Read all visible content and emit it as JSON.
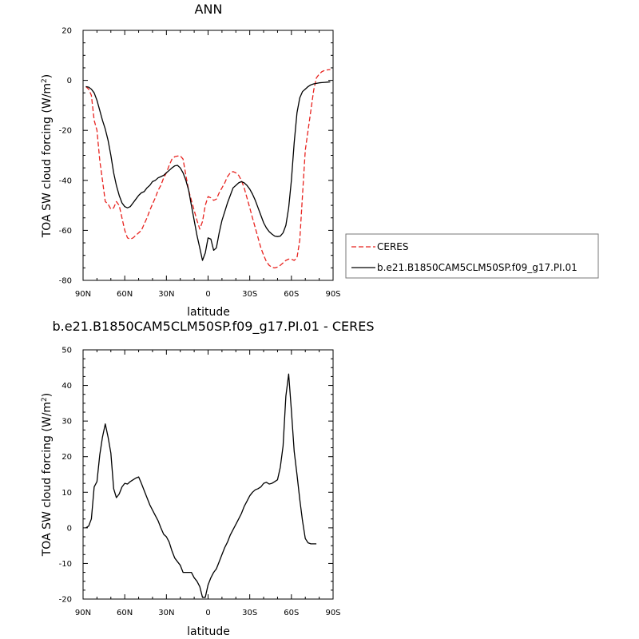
{
  "chart_data": [
    {
      "type": "line",
      "title": "ANN",
      "xlabel": "latitude",
      "ylabel": "TOA SW cloud forcing (W/m",
      "ylabel_superscript": "2",
      "ylabel_suffix": ")",
      "xlim": [
        90,
        -90
      ],
      "ylim": [
        -80,
        20
      ],
      "xticks": [
        {
          "value": 90,
          "label": "90N"
        },
        {
          "value": 60,
          "label": "60N"
        },
        {
          "value": 30,
          "label": "30N"
        },
        {
          "value": 0,
          "label": "0"
        },
        {
          "value": -30,
          "label": "30S"
        },
        {
          "value": -60,
          "label": "60S"
        },
        {
          "value": -90,
          "label": "90S"
        }
      ],
      "yticks": [
        20,
        0,
        -20,
        -40,
        -60,
        -80
      ],
      "legend_position": "right",
      "series": [
        {
          "name": "CERES",
          "color": "#e8231f",
          "dash": "dashed",
          "points": [
            [
              88,
              -2.5
            ],
            [
              86,
              -3.5
            ],
            [
              84,
              -6
            ],
            [
              82,
              -16
            ],
            [
              80,
              -20
            ],
            [
              78,
              -32
            ],
            [
              76,
              -40
            ],
            [
              74,
              -48.5
            ],
            [
              72,
              -49.5
            ],
            [
              70,
              -51.5
            ],
            [
              68,
              -51
            ],
            [
              66,
              -48.5
            ],
            [
              64,
              -50
            ],
            [
              62,
              -55
            ],
            [
              60,
              -60
            ],
            [
              58,
              -63
            ],
            [
              56,
              -63.5
            ],
            [
              54,
              -63
            ],
            [
              52,
              -62
            ],
            [
              50,
              -61
            ],
            [
              48,
              -60
            ],
            [
              46,
              -57.5
            ],
            [
              44,
              -55
            ],
            [
              42,
              -52
            ],
            [
              40,
              -49.5
            ],
            [
              38,
              -47
            ],
            [
              36,
              -44
            ],
            [
              34,
              -42
            ],
            [
              32,
              -39
            ],
            [
              30,
              -37
            ],
            [
              28,
              -34
            ],
            [
              26,
              -31.5
            ],
            [
              24,
              -30.5
            ],
            [
              22,
              -30.3
            ],
            [
              20,
              -30.2
            ],
            [
              18,
              -31.5
            ],
            [
              16,
              -38
            ],
            [
              14,
              -44
            ],
            [
              12,
              -48
            ],
            [
              10,
              -52
            ],
            [
              8,
              -56
            ],
            [
              6,
              -59.5
            ],
            [
              4,
              -56.5
            ],
            [
              2,
              -50
            ],
            [
              0,
              -46.5
            ],
            [
              -2,
              -47
            ],
            [
              -4,
              -48
            ],
            [
              -6,
              -47.5
            ],
            [
              -8,
              -45
            ],
            [
              -10,
              -43
            ],
            [
              -12,
              -41
            ],
            [
              -14,
              -38.5
            ],
            [
              -16,
              -37
            ],
            [
              -18,
              -36.5
            ],
            [
              -20,
              -37
            ],
            [
              -22,
              -38
            ],
            [
              -24,
              -40
            ],
            [
              -26,
              -43
            ],
            [
              -28,
              -47
            ],
            [
              -30,
              -51
            ],
            [
              -32,
              -55
            ],
            [
              -34,
              -59
            ],
            [
              -36,
              -63
            ],
            [
              -38,
              -67
            ],
            [
              -40,
              -70
            ],
            [
              -42,
              -72.5
            ],
            [
              -44,
              -74
            ],
            [
              -46,
              -74.8
            ],
            [
              -48,
              -75
            ],
            [
              -50,
              -74.7
            ],
            [
              -52,
              -74
            ],
            [
              -54,
              -73
            ],
            [
              -56,
              -72
            ],
            [
              -58,
              -71.5
            ],
            [
              -60,
              -71.5
            ],
            [
              -62,
              -72
            ],
            [
              -64,
              -71
            ],
            [
              -66,
              -64
            ],
            [
              -68,
              -46
            ],
            [
              -70,
              -28
            ],
            [
              -72,
              -20
            ],
            [
              -74,
              -12
            ],
            [
              -76,
              -4
            ],
            [
              -78,
              1
            ],
            [
              -80,
              2.5
            ],
            [
              -82,
              3.5
            ],
            [
              -84,
              4
            ],
            [
              -86,
              4.2
            ],
            [
              -88,
              4.3
            ]
          ]
        },
        {
          "name": "b.e21.B1850CAM5CLM50SP.f09_g17.PI.01",
          "color": "#000000",
          "dash": "solid",
          "points": [
            [
              88,
              -2.5
            ],
            [
              86,
              -2.7
            ],
            [
              84,
              -3.5
            ],
            [
              82,
              -5
            ],
            [
              80,
              -8
            ],
            [
              78,
              -12
            ],
            [
              76,
              -16
            ],
            [
              74,
              -19.5
            ],
            [
              72,
              -24
            ],
            [
              70,
              -30
            ],
            [
              68,
              -37
            ],
            [
              66,
              -42
            ],
            [
              64,
              -46
            ],
            [
              62,
              -49
            ],
            [
              60,
              -50.5
            ],
            [
              58,
              -51
            ],
            [
              56,
              -50.5
            ],
            [
              54,
              -49
            ],
            [
              52,
              -47.5
            ],
            [
              50,
              -46
            ],
            [
              48,
              -45
            ],
            [
              46,
              -44.5
            ],
            [
              44,
              -43
            ],
            [
              42,
              -42
            ],
            [
              40,
              -40.5
            ],
            [
              38,
              -40
            ],
            [
              36,
              -39
            ],
            [
              34,
              -38.5
            ],
            [
              32,
              -38
            ],
            [
              30,
              -37
            ],
            [
              28,
              -36
            ],
            [
              26,
              -35
            ],
            [
              24,
              -34.2
            ],
            [
              22,
              -34
            ],
            [
              20,
              -35
            ],
            [
              18,
              -37
            ],
            [
              16,
              -40
            ],
            [
              14,
              -44
            ],
            [
              12,
              -50
            ],
            [
              10,
              -56
            ],
            [
              8,
              -62
            ],
            [
              6,
              -67
            ],
            [
              4,
              -72
            ],
            [
              2,
              -69
            ],
            [
              0,
              -63
            ],
            [
              -2,
              -63.5
            ],
            [
              -4,
              -68
            ],
            [
              -6,
              -67
            ],
            [
              -8,
              -61
            ],
            [
              -10,
              -56
            ],
            [
              -12,
              -52.5
            ],
            [
              -14,
              -49
            ],
            [
              -16,
              -46
            ],
            [
              -18,
              -43
            ],
            [
              -20,
              -42
            ],
            [
              -22,
              -41
            ],
            [
              -24,
              -40.5
            ],
            [
              -26,
              -41
            ],
            [
              -28,
              -42
            ],
            [
              -30,
              -43.5
            ],
            [
              -32,
              -45.5
            ],
            [
              -34,
              -48
            ],
            [
              -36,
              -51
            ],
            [
              -38,
              -54
            ],
            [
              -40,
              -57
            ],
            [
              -42,
              -59
            ],
            [
              -44,
              -60.5
            ],
            [
              -46,
              -61.5
            ],
            [
              -48,
              -62.3
            ],
            [
              -50,
              -62.5
            ],
            [
              -52,
              -62.3
            ],
            [
              -54,
              -61
            ],
            [
              -56,
              -58
            ],
            [
              -58,
              -51
            ],
            [
              -60,
              -40
            ],
            [
              -62,
              -25
            ],
            [
              -64,
              -13
            ],
            [
              -66,
              -7
            ],
            [
              -68,
              -4.5
            ],
            [
              -70,
              -3.5
            ],
            [
              -72,
              -2.5
            ],
            [
              -74,
              -1.8
            ],
            [
              -76,
              -1.4
            ],
            [
              -78,
              -1.2
            ],
            [
              -80,
              -1
            ],
            [
              -82,
              -0.9
            ],
            [
              -84,
              -0.8
            ],
            [
              -86,
              -0.7
            ],
            [
              -88,
              -0.6
            ]
          ]
        }
      ]
    },
    {
      "type": "line",
      "title": "b.e21.B1850CAM5CLM50SP.f09_g17.PI.01 - CERES",
      "xlabel": "latitude",
      "ylabel": "TOA SW cloud forcing (W/m",
      "ylabel_superscript": "2",
      "ylabel_suffix": ")",
      "xlim": [
        90,
        -90
      ],
      "ylim": [
        -20,
        50
      ],
      "xticks": [
        {
          "value": 90,
          "label": "90N"
        },
        {
          "value": 60,
          "label": "60N"
        },
        {
          "value": 30,
          "label": "30N"
        },
        {
          "value": 0,
          "label": "0"
        },
        {
          "value": -30,
          "label": "30S"
        },
        {
          "value": -60,
          "label": "60S"
        },
        {
          "value": -90,
          "label": "90S"
        }
      ],
      "yticks": [
        50,
        40,
        30,
        20,
        10,
        0,
        -10,
        -20
      ],
      "series": [
        {
          "color": "#000000",
          "dash": "solid",
          "points": [
            [
              88,
              0
            ],
            [
              86,
              0.5
            ],
            [
              84,
              2.5
            ],
            [
              82,
              11.5
            ],
            [
              80,
              13
            ],
            [
              78,
              20.5
            ],
            [
              76,
              25.5
            ],
            [
              74,
              29.2
            ],
            [
              72,
              25.5
            ],
            [
              70,
              21
            ],
            [
              68,
              11
            ],
            [
              66,
              8.5
            ],
            [
              64,
              9.5
            ],
            [
              62,
              11.5
            ],
            [
              60,
              12.5
            ],
            [
              58,
              12.3
            ],
            [
              56,
              13
            ],
            [
              54,
              13.5
            ],
            [
              52,
              14
            ],
            [
              50,
              14.3
            ],
            [
              48,
              12.5
            ],
            [
              46,
              10.5
            ],
            [
              44,
              8.5
            ],
            [
              42,
              6.5
            ],
            [
              40,
              5
            ],
            [
              38,
              3.5
            ],
            [
              36,
              2
            ],
            [
              34,
              0
            ],
            [
              32,
              -1.8
            ],
            [
              30,
              -2.5
            ],
            [
              28,
              -4
            ],
            [
              26,
              -6.5
            ],
            [
              24,
              -8.5
            ],
            [
              22,
              -9.5
            ],
            [
              20,
              -10.5
            ],
            [
              18,
              -12.5
            ],
            [
              16,
              -12.5
            ],
            [
              14,
              -12.5
            ],
            [
              12,
              -12.5
            ],
            [
              10,
              -14
            ],
            [
              8,
              -15
            ],
            [
              6,
              -16.5
            ],
            [
              4,
              -19.5
            ],
            [
              2,
              -19.5
            ],
            [
              0,
              -16
            ],
            [
              -2,
              -14
            ],
            [
              -4,
              -12.5
            ],
            [
              -6,
              -11.5
            ],
            [
              -8,
              -9.5
            ],
            [
              -10,
              -7.5
            ],
            [
              -12,
              -5.5
            ],
            [
              -14,
              -4
            ],
            [
              -16,
              -2
            ],
            [
              -18,
              -0.5
            ],
            [
              -20,
              1
            ],
            [
              -22,
              2.5
            ],
            [
              -24,
              4
            ],
            [
              -26,
              6
            ],
            [
              -28,
              7.5
            ],
            [
              -30,
              9
            ],
            [
              -32,
              10
            ],
            [
              -34,
              10.7
            ],
            [
              -36,
              11
            ],
            [
              -38,
              11.5
            ],
            [
              -40,
              12.5
            ],
            [
              -42,
              12.8
            ],
            [
              -44,
              12.3
            ],
            [
              -46,
              12.5
            ],
            [
              -48,
              13
            ],
            [
              -50,
              13.5
            ],
            [
              -52,
              17
            ],
            [
              -54,
              23
            ],
            [
              -56,
              37
            ],
            [
              -58,
              43.2
            ],
            [
              -60,
              33
            ],
            [
              -62,
              21.5
            ],
            [
              -64,
              15
            ],
            [
              -66,
              8
            ],
            [
              -68,
              2
            ],
            [
              -70,
              -3
            ],
            [
              -72,
              -4.2
            ],
            [
              -74,
              -4.5
            ],
            [
              -76,
              -4.5
            ],
            [
              -78,
              -4.5
            ]
          ]
        }
      ]
    }
  ]
}
